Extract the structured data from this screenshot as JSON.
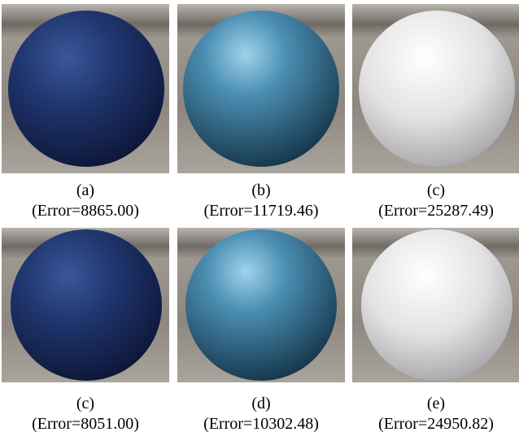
{
  "figure": {
    "panels": [
      {
        "label": "(a)",
        "caption": "(Error=8865.00)"
      },
      {
        "label": "(b)",
        "caption": "(Error=11719.46)"
      },
      {
        "label": "(c)",
        "caption": "(Error=25287.49)"
      },
      {
        "label": "(c)",
        "caption": "(Error=8051.00)"
      },
      {
        "label": "(d)",
        "caption": "(Error=10302.48)"
      },
      {
        "label": "(e)",
        "caption": "(Error=24950.82)"
      }
    ]
  }
}
